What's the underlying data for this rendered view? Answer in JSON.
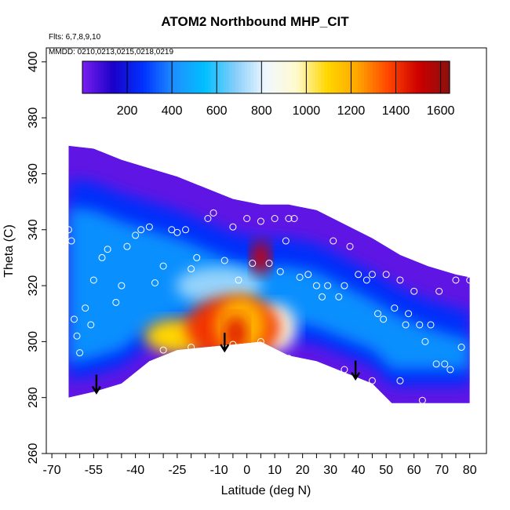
{
  "title": "ATOM2 Northbound MHP_CIT",
  "notes": {
    "flights": "Flts: 6,7,8,9,10",
    "dates": "MMDD: 0210,0213,0215,0218,0219"
  },
  "chart_data": {
    "type": "heatmap",
    "title": "ATOM2 Northbound MHP_CIT",
    "xlabel": "Latitude (deg N)",
    "ylabel": "Theta (C)",
    "xlim": [
      -72,
      86
    ],
    "ylim": [
      260,
      405
    ],
    "x_ticks": [
      -70,
      -55,
      -40,
      -25,
      -10,
      0,
      10,
      20,
      30,
      40,
      50,
      60,
      70,
      80
    ],
    "y_ticks": [
      260,
      280,
      300,
      320,
      340,
      360,
      380,
      400
    ],
    "grid": false,
    "colorbar": {
      "range": [
        0,
        1640
      ],
      "ticks": [
        200,
        400,
        600,
        800,
        1000,
        1200,
        1400,
        1600
      ],
      "colors": [
        "#7B1FF0",
        "#1A00C8",
        "#0033FF",
        "#1E90FF",
        "#00BFFF",
        "#87CEFA",
        "#F0F8FF",
        "#FFFACD",
        "#FFD700",
        "#FFA500",
        "#FF4500",
        "#CC0000",
        "#8B1010"
      ]
    },
    "field": {
      "upper_boundary": [
        [
          -64,
          370
        ],
        [
          -55,
          369
        ],
        [
          -45,
          365
        ],
        [
          -35,
          362
        ],
        [
          -25,
          359
        ],
        [
          -15,
          355
        ],
        [
          -5,
          351
        ],
        [
          5,
          349
        ],
        [
          15,
          349
        ],
        [
          25,
          347
        ],
        [
          35,
          342
        ],
        [
          45,
          337
        ],
        [
          55,
          331
        ],
        [
          65,
          327
        ],
        [
          75,
          324
        ],
        [
          80,
          323
        ]
      ],
      "lower_boundary": [
        [
          -64,
          280
        ],
        [
          -55,
          282
        ],
        [
          -45,
          285
        ],
        [
          -35,
          293
        ],
        [
          -25,
          297
        ],
        [
          -15,
          298
        ],
        [
          -5,
          299
        ],
        [
          5,
          300
        ],
        [
          15,
          295
        ],
        [
          25,
          293
        ],
        [
          35,
          289
        ],
        [
          45,
          285
        ],
        [
          52,
          278
        ],
        [
          60,
          278
        ],
        [
          70,
          278
        ],
        [
          80,
          278
        ]
      ],
      "hotspots": [
        {
          "lat": -5,
          "theta": 305,
          "value": 1400
        },
        {
          "lat": -25,
          "theta": 302,
          "value": 1100
        },
        {
          "lat": 5,
          "theta": 330,
          "value": 1500
        },
        {
          "lat": 10,
          "theta": 305,
          "value": 900
        },
        {
          "lat": -10,
          "theta": 320,
          "value": 700
        }
      ]
    },
    "observations": [
      {
        "lat": -64,
        "theta": 340
      },
      {
        "lat": -63,
        "theta": 336
      },
      {
        "lat": -62,
        "theta": 308
      },
      {
        "lat": -61,
        "theta": 302
      },
      {
        "lat": -60,
        "theta": 296
      },
      {
        "lat": -58,
        "theta": 312
      },
      {
        "lat": -56,
        "theta": 306
      },
      {
        "lat": -55,
        "theta": 322
      },
      {
        "lat": -52,
        "theta": 330
      },
      {
        "lat": -50,
        "theta": 333
      },
      {
        "lat": -47,
        "theta": 314
      },
      {
        "lat": -45,
        "theta": 320
      },
      {
        "lat": -43,
        "theta": 334
      },
      {
        "lat": -40,
        "theta": 338
      },
      {
        "lat": -38,
        "theta": 340
      },
      {
        "lat": -35,
        "theta": 341
      },
      {
        "lat": -33,
        "theta": 321
      },
      {
        "lat": -30,
        "theta": 327
      },
      {
        "lat": -27,
        "theta": 340
      },
      {
        "lat": -25,
        "theta": 339
      },
      {
        "lat": -22,
        "theta": 340
      },
      {
        "lat": -20,
        "theta": 326
      },
      {
        "lat": -18,
        "theta": 330
      },
      {
        "lat": -14,
        "theta": 344
      },
      {
        "lat": -12,
        "theta": 346
      },
      {
        "lat": -8,
        "theta": 329
      },
      {
        "lat": -5,
        "theta": 341
      },
      {
        "lat": -3,
        "theta": 322
      },
      {
        "lat": 0,
        "theta": 344
      },
      {
        "lat": 2,
        "theta": 328
      },
      {
        "lat": 5,
        "theta": 343
      },
      {
        "lat": 8,
        "theta": 328
      },
      {
        "lat": 10,
        "theta": 344
      },
      {
        "lat": 12,
        "theta": 325
      },
      {
        "lat": 14,
        "theta": 336
      },
      {
        "lat": 15,
        "theta": 344
      },
      {
        "lat": 17,
        "theta": 344
      },
      {
        "lat": 19,
        "theta": 323
      },
      {
        "lat": 22,
        "theta": 324
      },
      {
        "lat": 25,
        "theta": 320
      },
      {
        "lat": 27,
        "theta": 316
      },
      {
        "lat": 29,
        "theta": 320
      },
      {
        "lat": 31,
        "theta": 336
      },
      {
        "lat": 33,
        "theta": 316
      },
      {
        "lat": 35,
        "theta": 320
      },
      {
        "lat": 37,
        "theta": 334
      },
      {
        "lat": 40,
        "theta": 324
      },
      {
        "lat": 43,
        "theta": 322
      },
      {
        "lat": 45,
        "theta": 324
      },
      {
        "lat": 47,
        "theta": 310
      },
      {
        "lat": 49,
        "theta": 308
      },
      {
        "lat": 50,
        "theta": 324
      },
      {
        "lat": 53,
        "theta": 312
      },
      {
        "lat": 55,
        "theta": 322
      },
      {
        "lat": 57,
        "theta": 306
      },
      {
        "lat": 58,
        "theta": 310
      },
      {
        "lat": 60,
        "theta": 318
      },
      {
        "lat": 62,
        "theta": 306
      },
      {
        "lat": 64,
        "theta": 300
      },
      {
        "lat": 66,
        "theta": 306
      },
      {
        "lat": 68,
        "theta": 292
      },
      {
        "lat": 69,
        "theta": 318
      },
      {
        "lat": 71,
        "theta": 292
      },
      {
        "lat": 73,
        "theta": 290
      },
      {
        "lat": 75,
        "theta": 322
      },
      {
        "lat": 77,
        "theta": 298
      },
      {
        "lat": 80,
        "theta": 322
      },
      {
        "lat": 63,
        "theta": 279
      },
      {
        "lat": 45,
        "theta": 286
      },
      {
        "lat": 55,
        "theta": 286
      },
      {
        "lat": 35,
        "theta": 290
      },
      {
        "lat": 15,
        "theta": 294
      },
      {
        "lat": -30,
        "theta": 297
      },
      {
        "lat": -20,
        "theta": 298
      },
      {
        "lat": -5,
        "theta": 299
      },
      {
        "lat": 5,
        "theta": 300
      }
    ],
    "arrows": [
      {
        "lat": -54,
        "theta": 282
      },
      {
        "lat": -8,
        "theta": 297
      },
      {
        "lat": 39,
        "theta": 287
      }
    ]
  }
}
